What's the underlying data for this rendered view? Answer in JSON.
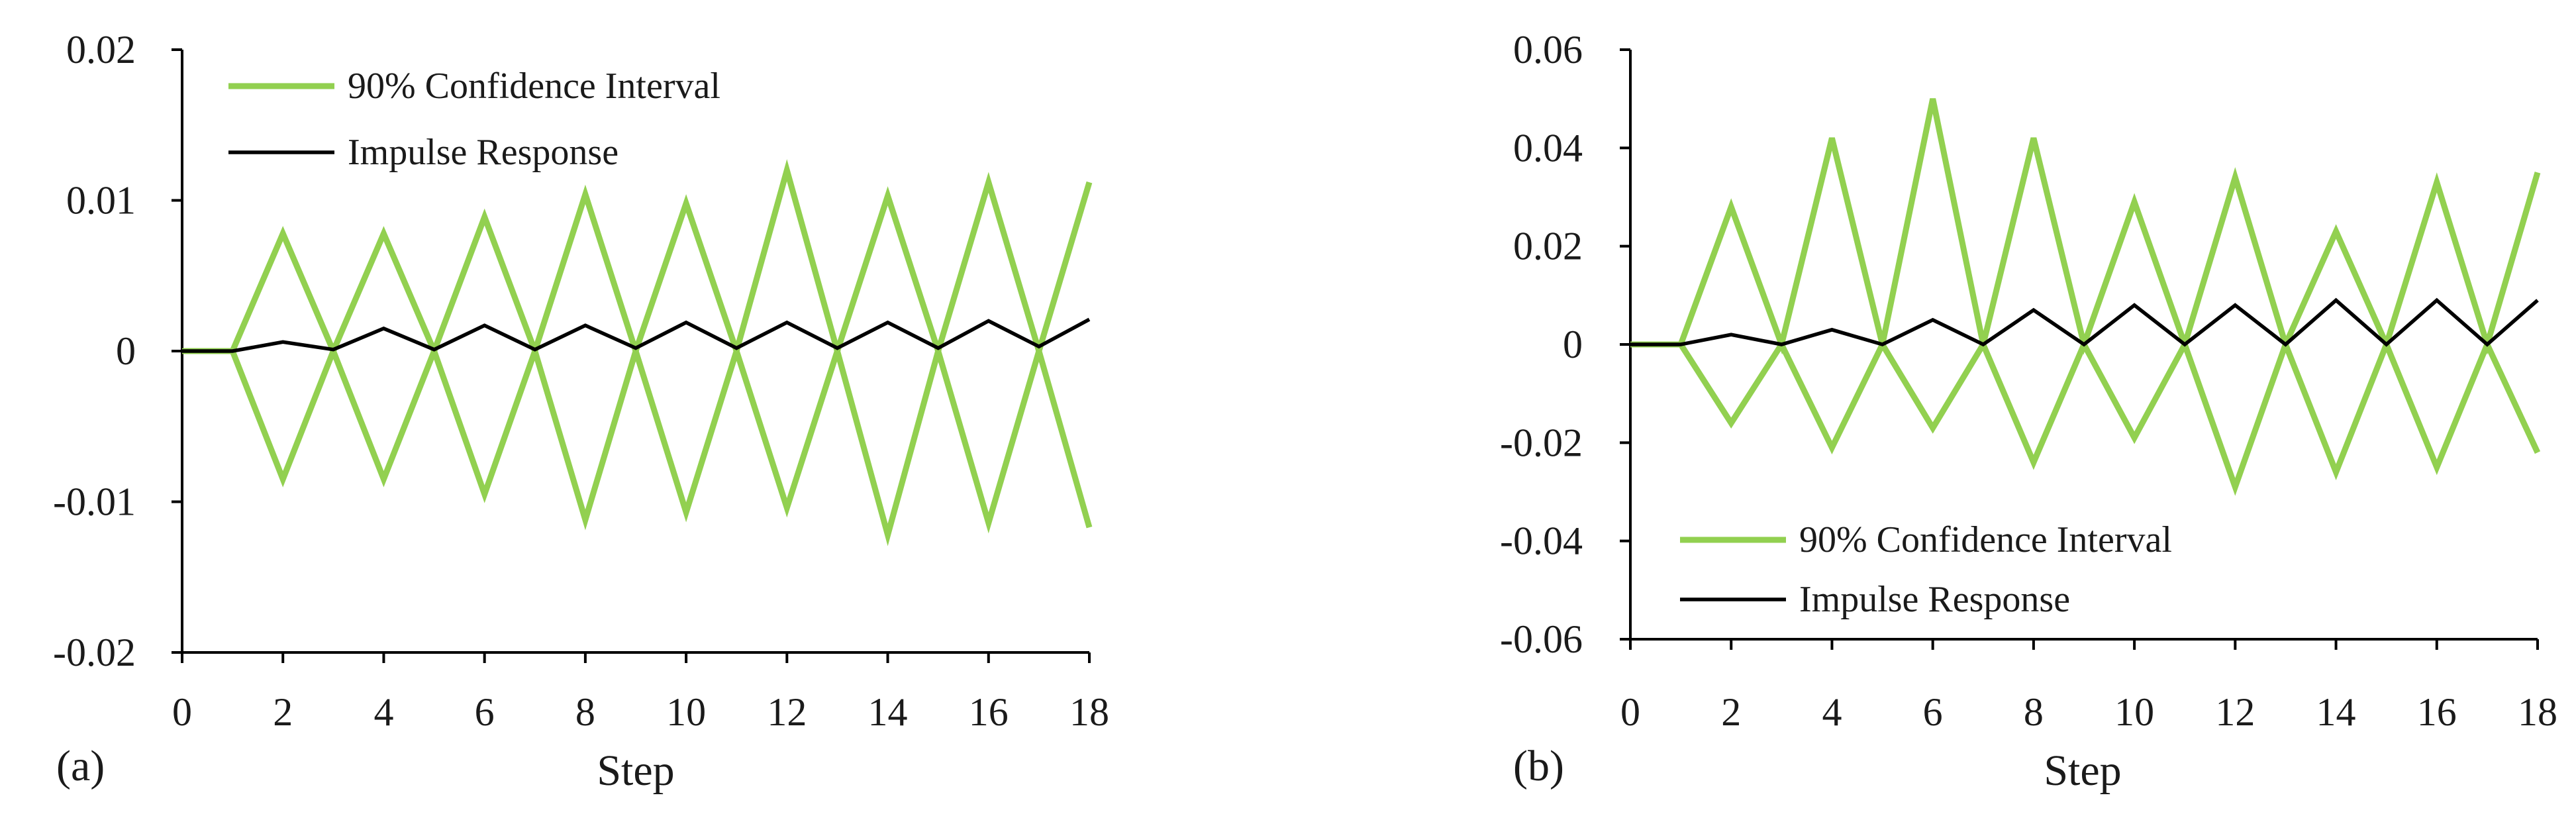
{
  "chart_data": [
    {
      "panel_label": "(a)",
      "type": "line",
      "xlabel": "Step",
      "ylabel": "",
      "xlim": [
        0,
        18
      ],
      "ylim": [
        -0.02,
        0.02
      ],
      "xticks": [
        "0",
        "2",
        "4",
        "6",
        "8",
        "10",
        "12",
        "14",
        "16",
        "18"
      ],
      "yticks": [
        "0.02",
        "0.01",
        "0",
        "-0.01",
        "-0.02"
      ],
      "legend_position": "top-left",
      "grid": false,
      "x": [
        0,
        1,
        2,
        3,
        4,
        5,
        6,
        7,
        8,
        9,
        10,
        11,
        12,
        13,
        14,
        15,
        16,
        17,
        18
      ],
      "series": [
        {
          "name": "90% Confidence Interval",
          "color": "#92d050",
          "values": [
            0,
            0,
            0.0078,
            0,
            0.0078,
            0,
            0.0089,
            0,
            0.0104,
            0,
            0.0098,
            0,
            0.012,
            0,
            0.0103,
            0,
            0.0112,
            0,
            0.0112
          ]
        },
        {
          "name": "",
          "color": "#92d050",
          "values": [
            0,
            0,
            -0.0085,
            0,
            -0.0085,
            0,
            -0.0095,
            0,
            -0.0112,
            0,
            -0.0107,
            0,
            -0.0104,
            0,
            -0.0122,
            0,
            -0.0114,
            0,
            -0.0117
          ]
        },
        {
          "name": "Impulse Response",
          "color": "#000000",
          "values": [
            0,
            0,
            0.0006,
            0.0001,
            0.0015,
            0.0001,
            0.0017,
            0.0001,
            0.0017,
            0.0002,
            0.0019,
            0.0002,
            0.0019,
            0.0002,
            0.0019,
            0.0002,
            0.002,
            0.0003,
            0.0021
          ]
        }
      ]
    },
    {
      "panel_label": "(b)",
      "type": "line",
      "xlabel": "Step",
      "ylabel": "",
      "xlim": [
        0,
        18
      ],
      "ylim": [
        -0.06,
        0.06
      ],
      "xticks": [
        "0",
        "2",
        "4",
        "6",
        "8",
        "10",
        "12",
        "14",
        "16",
        "18"
      ],
      "yticks": [
        "0.06",
        "0.04",
        "0.02",
        "0",
        "-0.02",
        "-0.04",
        "-0.06"
      ],
      "legend_position": "bottom-left",
      "grid": false,
      "x": [
        0,
        1,
        2,
        3,
        4,
        5,
        6,
        7,
        8,
        9,
        10,
        11,
        12,
        13,
        14,
        15,
        16,
        17,
        18
      ],
      "series": [
        {
          "name": "90% Confidence Interval",
          "color": "#92d050",
          "values": [
            0,
            0,
            0.028,
            0,
            0.042,
            0,
            0.05,
            0,
            0.042,
            0,
            0.029,
            0,
            0.034,
            0,
            0.023,
            0,
            0.033,
            0,
            0.035
          ]
        },
        {
          "name": "",
          "color": "#92d050",
          "values": [
            0,
            0,
            -0.016,
            0,
            -0.021,
            0,
            -0.017,
            0,
            -0.024,
            0,
            -0.019,
            0,
            -0.029,
            0,
            -0.026,
            0,
            -0.025,
            0,
            -0.022
          ]
        },
        {
          "name": "Impulse Response",
          "color": "#000000",
          "values": [
            0,
            0,
            0.002,
            0,
            0.003,
            0,
            0.005,
            0,
            0.007,
            0,
            0.008,
            0,
            0.008,
            0,
            0.009,
            0,
            0.009,
            0,
            0.009
          ]
        }
      ]
    }
  ]
}
